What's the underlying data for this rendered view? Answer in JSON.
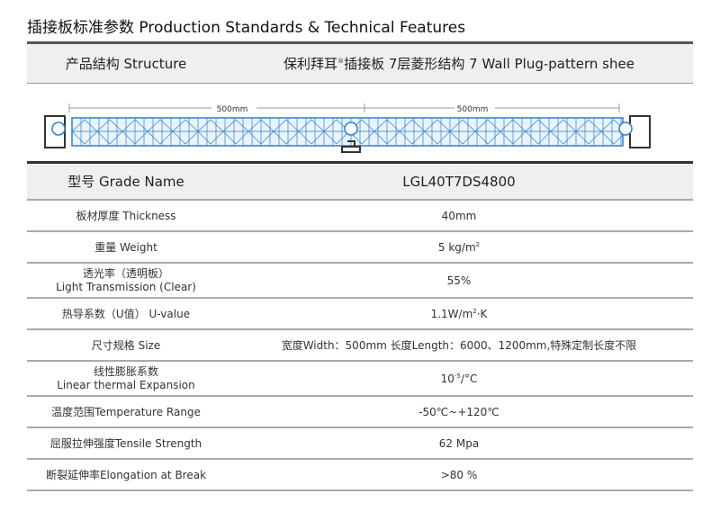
{
  "title": "插接板标准参数 Production Standards & Technical Features",
  "structure": {
    "label": "产品结构 Structure",
    "value_pre": "保利拜耳",
    "reg": "®",
    "value_post": "插接板 7层菱形结构 7 Wall Plug-pattern shee"
  },
  "diagram": {
    "dim_left": "500mm",
    "dim_right": "500mm",
    "accent": "#2a7fd4"
  },
  "grade": {
    "label": "型号  Grade Name",
    "value": "LGL40T7DS4800"
  },
  "rows": [
    {
      "label": "板材厚度  Thickness",
      "value": "40mm"
    },
    {
      "label": "重量  Weight",
      "value": "5 kg/m",
      "sup": "2"
    },
    {
      "label": "透光率（透明板）",
      "label2": "Light Transmission (Clear)",
      "value": "55%"
    },
    {
      "label": "热导系数（U值）  U-value",
      "value": "1.1W/m",
      "sup": "2",
      "value_post": "·K"
    },
    {
      "label": "尺寸规格  Size",
      "value": "宽度Width：500mm   长度Length：6000、1200mm,特殊定制长度不限"
    },
    {
      "label": "线性膨胀系数",
      "label2": "Linear thermal Expansion",
      "value": "10",
      "sup": "-5",
      "value_post": "/°C"
    },
    {
      "label": "温度范围Temperature Range",
      "value": "-50℃~+120℃"
    },
    {
      "label": "屈服拉伸强度Tensile Strength",
      "value": "62 Mpa"
    },
    {
      "label": "断裂延伸率Elongation at Break",
      "value": ">80 %"
    }
  ]
}
